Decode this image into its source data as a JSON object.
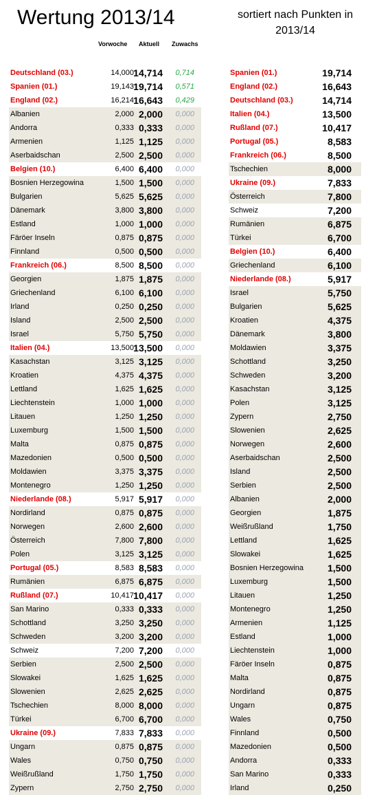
{
  "title": "Wertung 2013/14",
  "subtitle": "sortiert nach Punkten in 2013/14",
  "headers": {
    "vorwoche": "Vorwoche",
    "aktuell": "Aktuell",
    "zuwachs": "Zuwachs"
  },
  "left": [
    {
      "name": "Deutschland (03.)",
      "vor": "14,000",
      "akt": "14,714",
      "zu": "0,714",
      "hl": true,
      "pos": true
    },
    {
      "name": "Spanien (01.)",
      "vor": "19,143",
      "akt": "19,714",
      "zu": "0,571",
      "hl": true,
      "pos": true
    },
    {
      "name": "England (02.)",
      "vor": "16,214",
      "akt": "16,643",
      "zu": "0,429",
      "hl": true,
      "pos": true
    },
    {
      "name": "Albanien",
      "vor": "2,000",
      "akt": "2,000",
      "zu": "0,000"
    },
    {
      "name": "Andorra",
      "vor": "0,333",
      "akt": "0,333",
      "zu": "0,000"
    },
    {
      "name": "Armenien",
      "vor": "1,125",
      "akt": "1,125",
      "zu": "0,000"
    },
    {
      "name": "Aserbaidschan",
      "vor": "2,500",
      "akt": "2,500",
      "zu": "0,000"
    },
    {
      "name": "Belgien (10.)",
      "vor": "6,400",
      "akt": "6,400",
      "zu": "0,000",
      "hl": true
    },
    {
      "name": "Bosnien Herzegowina",
      "vor": "1,500",
      "akt": "1,500",
      "zu": "0,000"
    },
    {
      "name": "Bulgarien",
      "vor": "5,625",
      "akt": "5,625",
      "zu": "0,000"
    },
    {
      "name": "Dänemark",
      "vor": "3,800",
      "akt": "3,800",
      "zu": "0,000"
    },
    {
      "name": "Estland",
      "vor": "1,000",
      "akt": "1,000",
      "zu": "0,000"
    },
    {
      "name": "Färöer Inseln",
      "vor": "0,875",
      "akt": "0,875",
      "zu": "0,000"
    },
    {
      "name": "Finnland",
      "vor": "0,500",
      "akt": "0,500",
      "zu": "0,000"
    },
    {
      "name": "Frankreich (06.)",
      "vor": "8,500",
      "akt": "8,500",
      "zu": "0,000",
      "hl": true
    },
    {
      "name": "Georgien",
      "vor": "1,875",
      "akt": "1,875",
      "zu": "0,000"
    },
    {
      "name": "Griechenland",
      "vor": "6,100",
      "akt": "6,100",
      "zu": "0,000"
    },
    {
      "name": "Irland",
      "vor": "0,250",
      "akt": "0,250",
      "zu": "0,000"
    },
    {
      "name": "Island",
      "vor": "2,500",
      "akt": "2,500",
      "zu": "0,000"
    },
    {
      "name": "Israel",
      "vor": "5,750",
      "akt": "5,750",
      "zu": "0,000"
    },
    {
      "name": "Italien (04.)",
      "vor": "13,500",
      "akt": "13,500",
      "zu": "0,000",
      "hl": true
    },
    {
      "name": "Kasachstan",
      "vor": "3,125",
      "akt": "3,125",
      "zu": "0,000"
    },
    {
      "name": "Kroatien",
      "vor": "4,375",
      "akt": "4,375",
      "zu": "0,000"
    },
    {
      "name": "Lettland",
      "vor": "1,625",
      "akt": "1,625",
      "zu": "0,000"
    },
    {
      "name": "Liechtenstein",
      "vor": "1,000",
      "akt": "1,000",
      "zu": "0,000"
    },
    {
      "name": "Litauen",
      "vor": "1,250",
      "akt": "1,250",
      "zu": "0,000"
    },
    {
      "name": "Luxemburg",
      "vor": "1,500",
      "akt": "1,500",
      "zu": "0,000"
    },
    {
      "name": "Malta",
      "vor": "0,875",
      "akt": "0,875",
      "zu": "0,000"
    },
    {
      "name": "Mazedonien",
      "vor": "0,500",
      "akt": "0,500",
      "zu": "0,000"
    },
    {
      "name": "Moldawien",
      "vor": "3,375",
      "akt": "3,375",
      "zu": "0,000"
    },
    {
      "name": "Montenegro",
      "vor": "1,250",
      "akt": "1,250",
      "zu": "0,000"
    },
    {
      "name": "Niederlande (08.)",
      "vor": "5,917",
      "akt": "5,917",
      "zu": "0,000",
      "hl": true
    },
    {
      "name": "Nordirland",
      "vor": "0,875",
      "akt": "0,875",
      "zu": "0,000"
    },
    {
      "name": "Norwegen",
      "vor": "2,600",
      "akt": "2,600",
      "zu": "0,000"
    },
    {
      "name": "Österreich",
      "vor": "7,800",
      "akt": "7,800",
      "zu": "0,000"
    },
    {
      "name": "Polen",
      "vor": "3,125",
      "akt": "3,125",
      "zu": "0,000"
    },
    {
      "name": "Portugal (05.)",
      "vor": "8,583",
      "akt": "8,583",
      "zu": "0,000",
      "hl": true
    },
    {
      "name": "Rumänien",
      "vor": "6,875",
      "akt": "6,875",
      "zu": "0,000"
    },
    {
      "name": "Rußland (07.)",
      "vor": "10,417",
      "akt": "10,417",
      "zu": "0,000",
      "hl": true
    },
    {
      "name": "San Marino",
      "vor": "0,333",
      "akt": "0,333",
      "zu": "0,000"
    },
    {
      "name": "Schottland",
      "vor": "3,250",
      "akt": "3,250",
      "zu": "0,000"
    },
    {
      "name": "Schweden",
      "vor": "3,200",
      "akt": "3,200",
      "zu": "0,000"
    },
    {
      "name": "Schweiz",
      "vor": "7,200",
      "akt": "7,200",
      "zu": "0,000",
      "white": true
    },
    {
      "name": "Serbien",
      "vor": "2,500",
      "akt": "2,500",
      "zu": "0,000"
    },
    {
      "name": "Slowakei",
      "vor": "1,625",
      "akt": "1,625",
      "zu": "0,000"
    },
    {
      "name": "Slowenien",
      "vor": "2,625",
      "akt": "2,625",
      "zu": "0,000"
    },
    {
      "name": "Tschechien",
      "vor": "8,000",
      "akt": "8,000",
      "zu": "0,000"
    },
    {
      "name": "Türkei",
      "vor": "6,700",
      "akt": "6,700",
      "zu": "0,000"
    },
    {
      "name": "Ukraine (09.)",
      "vor": "7,833",
      "akt": "7,833",
      "zu": "0,000",
      "hl": true
    },
    {
      "name": "Ungarn",
      "vor": "0,875",
      "akt": "0,875",
      "zu": "0,000"
    },
    {
      "name": "Wales",
      "vor": "0,750",
      "akt": "0,750",
      "zu": "0,000"
    },
    {
      "name": "Weißrußland",
      "vor": "1,750",
      "akt": "1,750",
      "zu": "0,000"
    },
    {
      "name": "Zypern",
      "vor": "2,750",
      "akt": "2,750",
      "zu": "0,000"
    }
  ],
  "right": [
    {
      "name": "Spanien (01.)",
      "val": "19,714",
      "hl": true
    },
    {
      "name": "England (02.)",
      "val": "16,643",
      "hl": true
    },
    {
      "name": "Deutschland (03.)",
      "val": "14,714",
      "hl": true
    },
    {
      "name": "Italien (04.)",
      "val": "13,500",
      "hl": true
    },
    {
      "name": "Rußland (07.)",
      "val": "10,417",
      "hl": true
    },
    {
      "name": "Portugal (05.)",
      "val": "8,583",
      "hl": true
    },
    {
      "name": "Frankreich (06.)",
      "val": "8,500",
      "hl": true
    },
    {
      "name": "Tschechien",
      "val": "8,000"
    },
    {
      "name": "Ukraine (09.)",
      "val": "7,833",
      "hl": true
    },
    {
      "name": "Österreich",
      "val": "7,800"
    },
    {
      "name": "Schweiz",
      "val": "7,200",
      "white": true
    },
    {
      "name": "Rumänien",
      "val": "6,875"
    },
    {
      "name": "Türkei",
      "val": "6,700"
    },
    {
      "name": "Belgien (10.)",
      "val": "6,400",
      "hl": true
    },
    {
      "name": "Griechenland",
      "val": "6,100"
    },
    {
      "name": "Niederlande (08.)",
      "val": "5,917",
      "hl": true
    },
    {
      "name": "Israel",
      "val": "5,750"
    },
    {
      "name": "Bulgarien",
      "val": "5,625"
    },
    {
      "name": "Kroatien",
      "val": "4,375"
    },
    {
      "name": "Dänemark",
      "val": "3,800"
    },
    {
      "name": "Moldawien",
      "val": "3,375"
    },
    {
      "name": "Schottland",
      "val": "3,250"
    },
    {
      "name": "Schweden",
      "val": "3,200"
    },
    {
      "name": "Kasachstan",
      "val": "3,125"
    },
    {
      "name": "Polen",
      "val": "3,125"
    },
    {
      "name": "Zypern",
      "val": "2,750"
    },
    {
      "name": "Slowenien",
      "val": "2,625"
    },
    {
      "name": "Norwegen",
      "val": "2,600"
    },
    {
      "name": "Aserbaidschan",
      "val": "2,500"
    },
    {
      "name": "Island",
      "val": "2,500"
    },
    {
      "name": "Serbien",
      "val": "2,500"
    },
    {
      "name": "Albanien",
      "val": "2,000"
    },
    {
      "name": "Georgien",
      "val": "1,875"
    },
    {
      "name": "Weißrußland",
      "val": "1,750"
    },
    {
      "name": "Lettland",
      "val": "1,625"
    },
    {
      "name": "Slowakei",
      "val": "1,625"
    },
    {
      "name": "Bosnien Herzegowina",
      "val": "1,500"
    },
    {
      "name": "Luxemburg",
      "val": "1,500"
    },
    {
      "name": "Litauen",
      "val": "1,250"
    },
    {
      "name": "Montenegro",
      "val": "1,250"
    },
    {
      "name": "Armenien",
      "val": "1,125"
    },
    {
      "name": "Estland",
      "val": "1,000"
    },
    {
      "name": "Liechtenstein",
      "val": "1,000"
    },
    {
      "name": "Färöer Inseln",
      "val": "0,875"
    },
    {
      "name": "Malta",
      "val": "0,875"
    },
    {
      "name": "Nordirland",
      "val": "0,875"
    },
    {
      "name": "Ungarn",
      "val": "0,875"
    },
    {
      "name": "Wales",
      "val": "0,750"
    },
    {
      "name": "Finnland",
      "val": "0,500"
    },
    {
      "name": "Mazedonien",
      "val": "0,500"
    },
    {
      "name": "Andorra",
      "val": "0,333"
    },
    {
      "name": "San Marino",
      "val": "0,333"
    },
    {
      "name": "Irland",
      "val": "0,250"
    }
  ]
}
